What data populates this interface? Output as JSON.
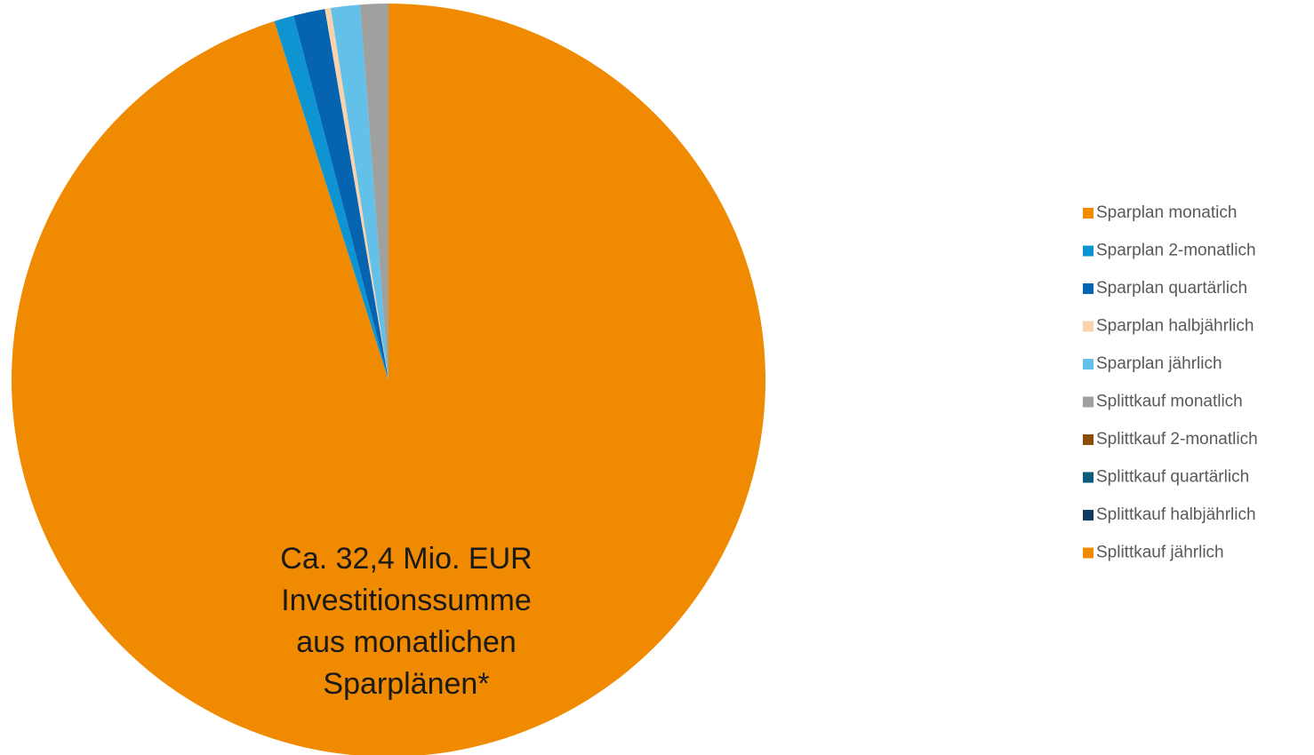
{
  "chart_data": {
    "type": "pie",
    "categories": [
      "Sparplan monatich",
      "Sparplan 2-monatlich",
      "Sparplan quartärlich",
      "Sparplan halbjährlich",
      "Sparplan jährlich",
      "Splittkauf monatlich",
      "Splittkauf 2-monatlich",
      "Splittkauf quartärlich",
      "Splittkauf halbjährlich",
      "Splittkauf jährlich"
    ],
    "values": [
      95.1,
      0.85,
      1.35,
      0.25,
      1.25,
      1.2,
      0,
      0,
      0,
      0
    ],
    "colors": [
      "#f08a00",
      "#0f94d2",
      "#0563b0",
      "#fad3ac",
      "#63c0e8",
      "#a0a09f",
      "#8c4a0b",
      "#0a5b78",
      "#0e3a60",
      "#f08a00"
    ],
    "annotation": [
      "Ca. 32,4 Mio. EUR",
      "Investitionssumme",
      "aus monatlichen",
      "Sparplänen*"
    ],
    "legend": "right"
  }
}
